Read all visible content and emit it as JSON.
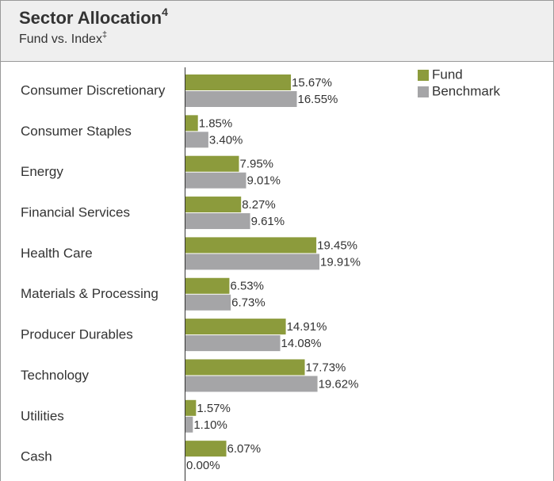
{
  "chart_data": {
    "type": "bar",
    "orientation": "horizontal",
    "title": "Sector Allocation",
    "title_note": "4",
    "subtitle": "Fund vs. Index",
    "subtitle_note": "‡",
    "categories": [
      "Consumer Discretionary",
      "Consumer Staples",
      "Energy",
      "Financial Services",
      "Health Care",
      "Materials & Processing",
      "Producer Durables",
      "Technology",
      "Utilities",
      "Cash"
    ],
    "series": [
      {
        "name": "Fund",
        "color": "#8c9b3c",
        "values": [
          15.67,
          1.85,
          7.95,
          8.27,
          19.45,
          6.53,
          14.91,
          17.73,
          1.57,
          6.07
        ],
        "value_labels": [
          "15.67%",
          "1.85%",
          "7.95%",
          "8.27%",
          "19.45%",
          "6.53%",
          "14.91%",
          "17.73%",
          "1.57%",
          "6.07%"
        ]
      },
      {
        "name": "Benchmark",
        "color": "#a5a5a7",
        "values": [
          16.55,
          3.4,
          9.01,
          9.61,
          19.91,
          6.73,
          14.08,
          19.62,
          1.1,
          0.0
        ],
        "value_labels": [
          "16.55%",
          "3.40%",
          "9.01%",
          "9.61%",
          "19.91%",
          "6.73%",
          "14.08%",
          "19.62%",
          "1.10%",
          "0.00%"
        ]
      }
    ],
    "legend": "top-right"
  }
}
